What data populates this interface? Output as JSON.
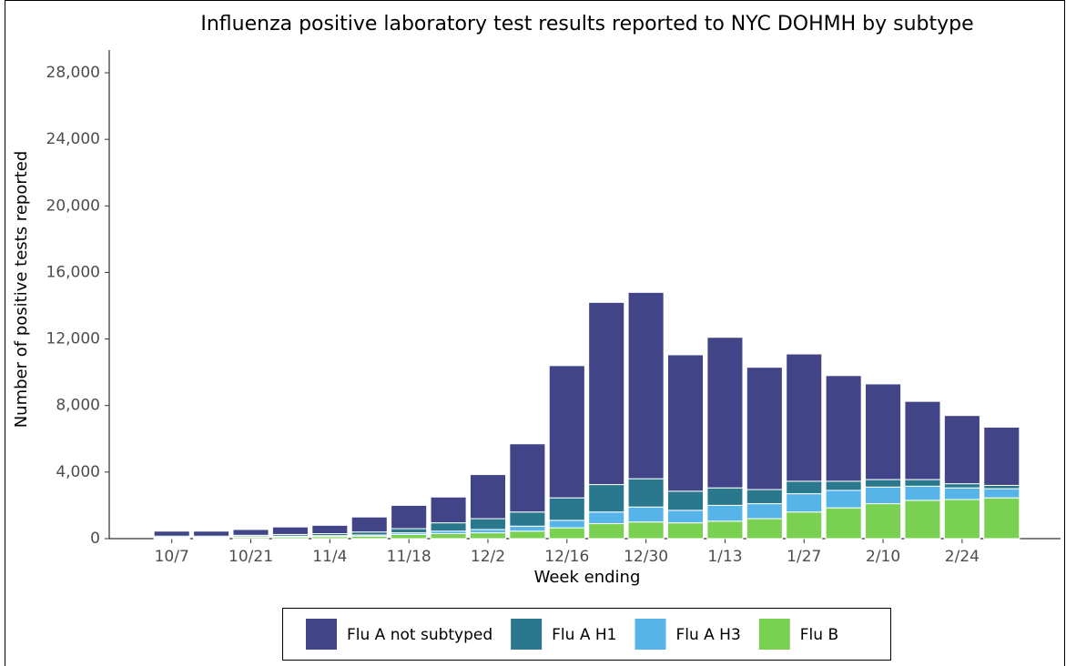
{
  "chart_data": {
    "type": "stacked_bar",
    "title": "Influenza positive laboratory test results reported to NYC DOHMH by subtype",
    "x_label": "Week ending",
    "y_label": "Number of positive tests reported",
    "categories": [
      "10/7",
      null,
      "10/21",
      null,
      "11/4",
      null,
      "11/18",
      null,
      "12/2",
      null,
      "12/16",
      null,
      "12/30",
      null,
      "1/13",
      null,
      "1/27",
      null,
      "2/10",
      null,
      "2/24",
      null
    ],
    "series": [
      {
        "name": "Flu A not subtyped",
        "color": "#414487",
        "values": [
          300,
          300,
          350,
          450,
          500,
          900,
          1400,
          1550,
          2650,
          4100,
          7950,
          10950,
          11200,
          8200,
          9050,
          7350,
          7650,
          6350,
          5750,
          4700,
          4100,
          3500
        ]
      },
      {
        "name": "Flu A H1",
        "color": "#2a788e",
        "values": [
          70,
          70,
          80,
          100,
          120,
          180,
          250,
          500,
          650,
          850,
          1350,
          1650,
          1700,
          1150,
          1050,
          850,
          750,
          550,
          450,
          400,
          250,
          200
        ]
      },
      {
        "name": "Flu A H3",
        "color": "#56b4e9",
        "values": [
          30,
          30,
          40,
          50,
          60,
          70,
          100,
          150,
          200,
          300,
          450,
          700,
          900,
          750,
          950,
          900,
          1100,
          1050,
          1000,
          850,
          700,
          550
        ]
      },
      {
        "name": "Flu B",
        "color": "#7ad151",
        "values": [
          50,
          50,
          80,
          100,
          120,
          150,
          250,
          300,
          350,
          450,
          650,
          900,
          1000,
          950,
          1050,
          1200,
          1600,
          1850,
          2100,
          2300,
          2350,
          2450
        ]
      }
    ],
    "ylim": [
      0,
      28000
    ],
    "yticks": [
      0,
      {
        "value": 4000,
        "label": "4,000"
      },
      {
        "value": 8000,
        "label": "8,000"
      },
      {
        "value": 12000,
        "label": "12,000"
      },
      {
        "value": 16000,
        "label": "16,000"
      },
      {
        "value": 20000,
        "label": "20,000"
      },
      {
        "value": 24000,
        "label": "24,000"
      },
      {
        "value": 28000,
        "label": "28,000"
      }
    ],
    "grid": false,
    "legend": "bottom"
  }
}
